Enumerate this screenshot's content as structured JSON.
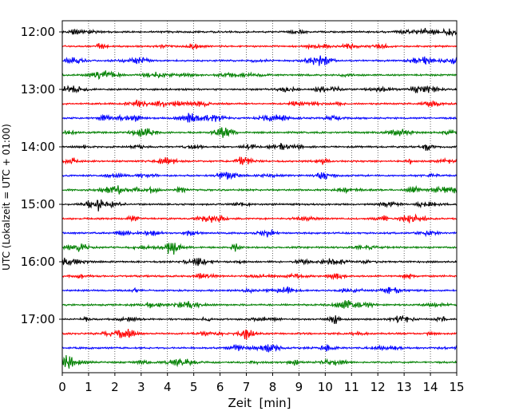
{
  "chart_data": {
    "type": "line",
    "title": "",
    "xlabel": "Zeit  [min]",
    "ylabel": "UTC (Lokalzeit = UTC + 01:00)",
    "xlim": [
      0,
      15
    ],
    "x_ticks": [
      "0",
      "1",
      "2",
      "3",
      "4",
      "5",
      "6",
      "7",
      "8",
      "9",
      "10",
      "11",
      "12",
      "13",
      "14",
      "15"
    ],
    "y_ticks": [
      "12:00",
      "13:00",
      "14:00",
      "15:00",
      "16:00",
      "17:00"
    ],
    "grid": "vertical dotted",
    "trace_colors": [
      "#000000",
      "#ff0000",
      "#0000ff",
      "#008000"
    ],
    "trace_start_times": [
      "12:00",
      "12:15",
      "12:30",
      "12:45",
      "13:00",
      "13:15",
      "13:30",
      "13:45",
      "14:00",
      "14:15",
      "14:30",
      "14:45",
      "15:00",
      "15:15",
      "15:30",
      "15:45",
      "16:00",
      "16:15",
      "16:30",
      "16:45",
      "17:00",
      "17:15",
      "17:30",
      "17:45"
    ]
  }
}
